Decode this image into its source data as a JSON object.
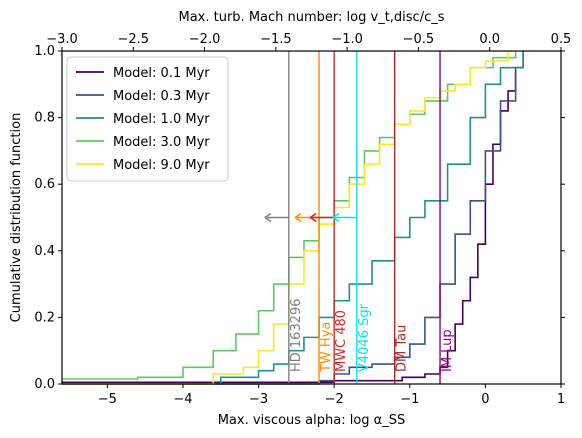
{
  "chart_data": {
    "type": "line",
    "xlabel": "Max. viscous alpha: log α_SS",
    "ylabel": "Cumulative distribution function",
    "top_xlabel": "Max. turb. Mach number: log v_t,disc/c_s",
    "xlim": [
      -5.6,
      1.0
    ],
    "ylim": [
      0.0,
      1.0
    ],
    "top_xlim": [
      -3.0,
      0.5
    ],
    "x_ticks": [
      -5,
      -4,
      -3,
      -2,
      -1,
      0,
      1
    ],
    "x_tick_labels": [
      "−5",
      "−4",
      "−3",
      "−2",
      "−1",
      "0",
      "1"
    ],
    "y_ticks": [
      0.0,
      0.2,
      0.4,
      0.6,
      0.8,
      1.0
    ],
    "y_tick_labels": [
      "0.0",
      "0.2",
      "0.4",
      "0.6",
      "0.8",
      "1.0"
    ],
    "top_ticks": [
      -3.0,
      -2.5,
      -2.0,
      -1.5,
      -1.0,
      -0.5,
      0.0,
      0.5
    ],
    "top_tick_labels": [
      "−3.0",
      "−2.5",
      "−2.0",
      "−1.5",
      "−1.0",
      "−0.5",
      "0.0",
      "0.5"
    ],
    "legend_position": "top-left",
    "grid": false,
    "series": [
      {
        "name": "Model: 0.1 Myr",
        "color": "#440154",
        "x": [
          -5.6,
          -2.6,
          -2.0,
          -1.5,
          -1.1,
          -0.8,
          -0.6,
          -0.5,
          -0.4,
          -0.3,
          -0.2,
          -0.1,
          0.0,
          0.1,
          0.2,
          0.3,
          0.4,
          0.5
        ],
        "y": [
          0.005,
          0.005,
          0.01,
          0.01,
          0.02,
          0.03,
          0.05,
          0.1,
          0.18,
          0.25,
          0.32,
          0.42,
          0.6,
          0.72,
          0.82,
          0.88,
          0.95,
          1.0
        ]
      },
      {
        "name": "Model: 0.3 Myr",
        "color": "#3b528b",
        "x": [
          -5.6,
          -2.6,
          -2.2,
          -2.0,
          -1.8,
          -1.5,
          -1.2,
          -1.0,
          -0.8,
          -0.6,
          -0.4,
          -0.2,
          0.0,
          0.2,
          0.4,
          0.5
        ],
        "y": [
          0.0,
          0.0,
          0.01,
          0.03,
          0.05,
          0.06,
          0.08,
          0.12,
          0.2,
          0.3,
          0.45,
          0.55,
          0.7,
          0.85,
          0.95,
          1.0
        ]
      },
      {
        "name": "Model: 1.0 Myr",
        "color": "#21918c",
        "x": [
          -5.6,
          -4.2,
          -3.5,
          -3.0,
          -2.8,
          -2.6,
          -2.4,
          -2.2,
          -2.0,
          -1.8,
          -1.5,
          -1.2,
          -1.0,
          -0.8,
          -0.5,
          -0.2,
          0.0,
          0.2,
          0.5
        ],
        "y": [
          0.0,
          0.0,
          0.02,
          0.04,
          0.06,
          0.1,
          0.14,
          0.2,
          0.25,
          0.3,
          0.37,
          0.44,
          0.5,
          0.55,
          0.66,
          0.8,
          0.9,
          0.95,
          1.0
        ]
      },
      {
        "name": "Model: 3.0 Myr",
        "color": "#5ec962",
        "x": [
          -5.6,
          -4.6,
          -4.0,
          -3.6,
          -3.3,
          -3.0,
          -2.8,
          -2.6,
          -2.4,
          -2.2,
          -2.0,
          -1.8,
          -1.6,
          -1.4,
          -1.2,
          -1.0,
          -0.8,
          -0.5,
          -0.2,
          0.1,
          0.4
        ],
        "y": [
          0.015,
          0.02,
          0.05,
          0.1,
          0.15,
          0.22,
          0.3,
          0.38,
          0.43,
          0.5,
          0.55,
          0.62,
          0.7,
          0.74,
          0.78,
          0.81,
          0.85,
          0.9,
          0.95,
          0.98,
          1.0
        ]
      },
      {
        "name": "Model: 9.0 Myr",
        "color": "#fde725",
        "x": [
          -5.6,
          -4.4,
          -3.6,
          -3.2,
          -3.0,
          -2.8,
          -2.6,
          -2.4,
          -2.2,
          -2.0,
          -1.8,
          -1.6,
          -1.4,
          -1.2,
          -1.0,
          -0.8,
          -0.6,
          -0.4,
          -0.2,
          0.0,
          0.3
        ],
        "y": [
          0.0,
          0.0,
          0.03,
          0.05,
          0.1,
          0.18,
          0.3,
          0.4,
          0.48,
          0.53,
          0.6,
          0.66,
          0.72,
          0.78,
          0.82,
          0.86,
          0.88,
          0.9,
          0.95,
          0.97,
          1.0
        ]
      }
    ],
    "markers": [
      {
        "label": "HD 163296",
        "x": -2.6,
        "color": "#808080",
        "arrow": true
      },
      {
        "label": "TW Hya",
        "x": -2.2,
        "color": "#ff8c00",
        "arrow": true
      },
      {
        "label": "MWC 480",
        "x": -2.0,
        "color": "#d62728",
        "arrow": true
      },
      {
        "label": "V4046 Sgr",
        "x": -1.7,
        "color": "#00e5ee",
        "arrow": true
      },
      {
        "label": "DM Tau",
        "x": -1.2,
        "color": "#a52a2a",
        "arrow": false
      },
      {
        "label": "IM Lup",
        "x": -0.6,
        "color": "#8b008b",
        "arrow": false
      }
    ],
    "arrow_y": 0.5
  }
}
